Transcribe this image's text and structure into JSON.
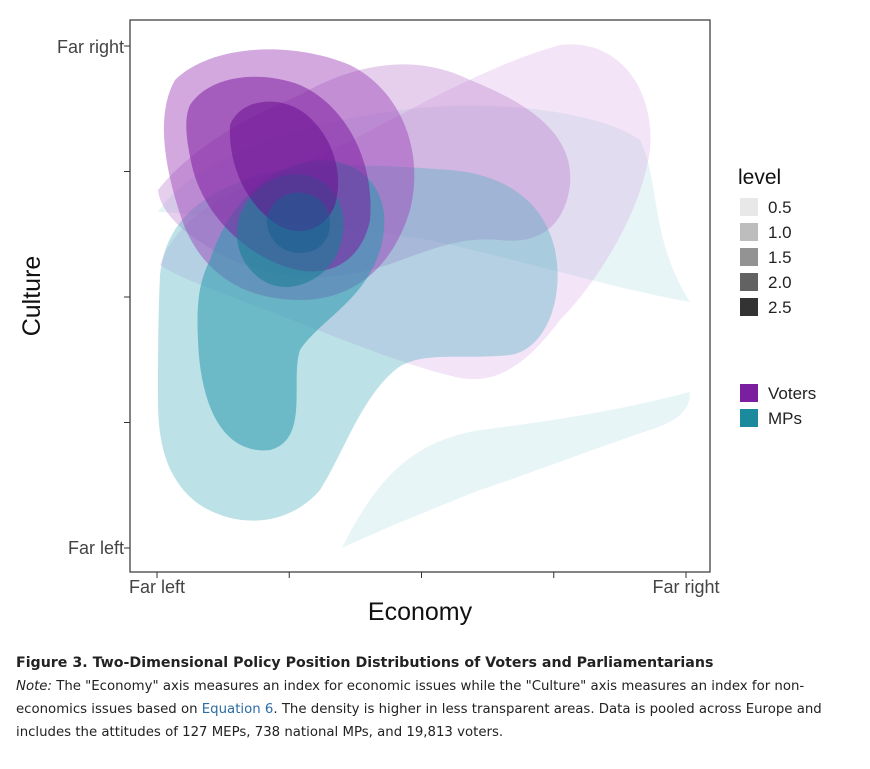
{
  "chart_data": {
    "type": "contour-density",
    "xlabel": "Economy",
    "ylabel": "Culture",
    "x_ticks": [
      "Far left",
      "",
      "",
      "",
      "Far right"
    ],
    "y_ticks": [
      "Far left",
      "",
      "",
      "",
      "Far right"
    ],
    "x_tick_labels": {
      "first": "Far left",
      "last": "Far right"
    },
    "y_tick_labels": {
      "first": "Far left",
      "last": "Far right"
    },
    "grid": false,
    "legend_placement": "right",
    "level_legend": {
      "title": "level",
      "levels": [
        {
          "label": "0.5",
          "color": "#e8e8e8"
        },
        {
          "label": "1.0",
          "color": "#bdbdbd"
        },
        {
          "label": "1.5",
          "color": "#939393"
        },
        {
          "label": "2.0",
          "color": "#626262"
        },
        {
          "label": "2.5",
          "color": "#333333"
        }
      ]
    },
    "group_legend": [
      {
        "name": "Voters",
        "color": "#7a1fa0"
      },
      {
        "name": "MPs",
        "color": "#1b8a9c"
      }
    ],
    "series": [
      {
        "name": "Voters",
        "color": "#8e2aa8",
        "mode_x": 0.25,
        "mode_y": 0.83,
        "levels": [
          0.5,
          1.0,
          1.5,
          2.0,
          2.5
        ]
      },
      {
        "name": "MPs",
        "color": "#1f8fa0",
        "mode_x": 0.3,
        "mode_y": 0.65,
        "levels": [
          0.5,
          1.0,
          1.5,
          2.0,
          2.5
        ]
      }
    ]
  },
  "caption": {
    "title": "Figure 3. Two-Dimensional Policy Position Distributions of Voters and Parliamentarians",
    "note_label": "Note:",
    "note_part1": " The \"Economy\" axis measures an index for economic issues while the \"Culture\" axis measures an index for non-economics issues based on ",
    "note_link": "Equation 6",
    "note_part2": ". The density is higher in less transparent areas. Data is pooled across Europe and includes the attitudes of 127 MEPs, 738 national MPs, and 19,813 voters."
  }
}
